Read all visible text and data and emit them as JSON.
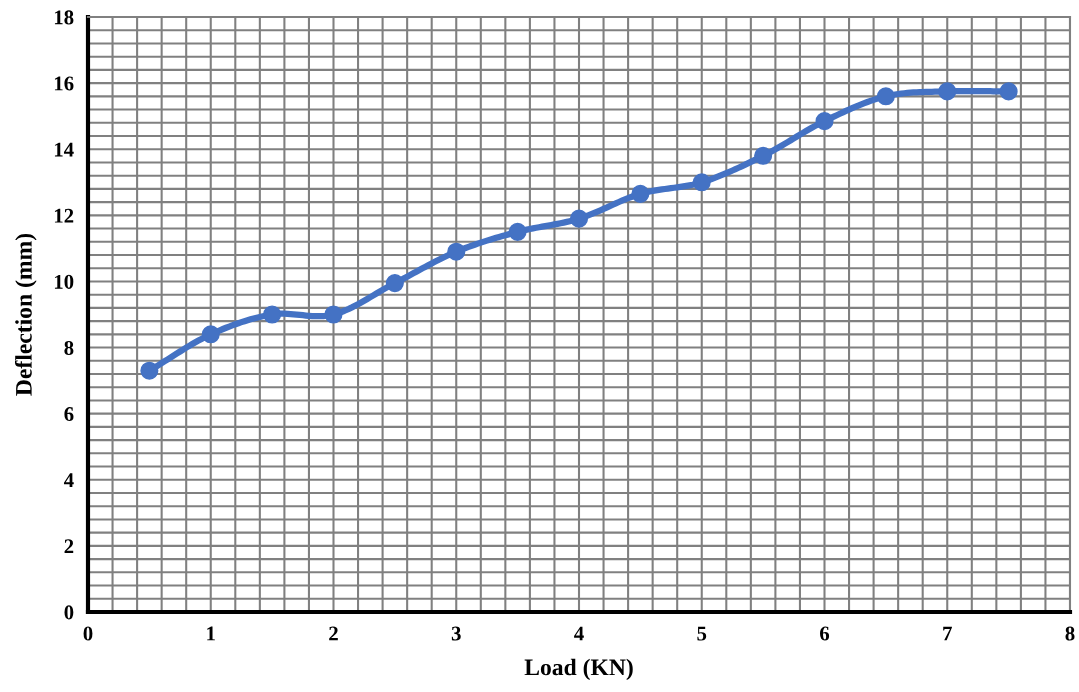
{
  "chart_data": {
    "type": "line",
    "xlabel": "Load (KN)",
    "ylabel": "Deflection (mm)",
    "x": [
      0.5,
      1,
      1.5,
      2,
      2.5,
      3,
      3.5,
      4,
      4.5,
      5,
      5.5,
      6,
      6.5,
      7,
      7.5
    ],
    "series": [
      {
        "color": "#4472c4",
        "values": [
          7.3,
          8.4,
          9.0,
          9.0,
          9.95,
          10.9,
          11.5,
          11.9,
          12.65,
          13.0,
          13.8,
          14.85,
          15.6,
          15.75,
          15.75
        ]
      }
    ],
    "xlim": [
      0,
      8
    ],
    "xticks": [
      0,
      1,
      2,
      3,
      4,
      5,
      6,
      7,
      8
    ],
    "ylim": [
      0,
      18
    ],
    "yticks": [
      0,
      2,
      4,
      6,
      8,
      10,
      12,
      14,
      16,
      18
    ],
    "grid": true,
    "marker": "circle",
    "line_style": "solid"
  }
}
